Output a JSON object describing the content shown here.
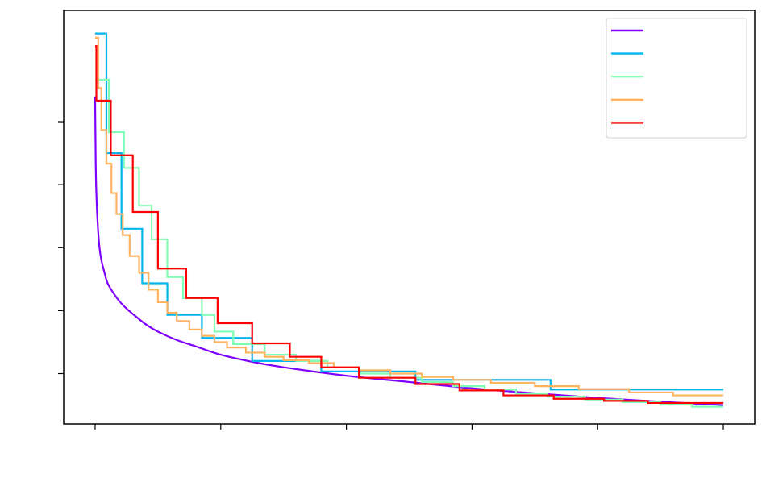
{
  "chart_data": {
    "type": "line",
    "title": "",
    "xlabel": "",
    "ylabel": "",
    "xlim": [
      -5,
      105
    ],
    "ylim": [
      0.08,
      1.065
    ],
    "x_ticks": [
      0,
      20,
      40,
      60,
      80,
      100
    ],
    "y_ticks": [
      0.2,
      0.35,
      0.5,
      0.65,
      0.8
    ],
    "grid": false,
    "legend_placement": "top-right",
    "series": [
      {
        "color": "#8000ff",
        "style": "smooth",
        "points": [
          [
            0,
            0.86
          ],
          [
            0.1,
            0.7
          ],
          [
            0.2,
            0.63
          ],
          [
            0.4,
            0.56
          ],
          [
            0.7,
            0.5
          ],
          [
            1,
            0.47
          ],
          [
            1.5,
            0.44
          ],
          [
            2,
            0.415
          ],
          [
            3,
            0.39
          ],
          [
            4,
            0.37
          ],
          [
            5,
            0.355
          ],
          [
            6,
            0.342
          ],
          [
            8,
            0.318
          ],
          [
            10,
            0.3
          ],
          [
            13,
            0.28
          ],
          [
            16,
            0.265
          ],
          [
            20,
            0.245
          ],
          [
            25,
            0.228
          ],
          [
            30,
            0.215
          ],
          [
            40,
            0.195
          ],
          [
            50,
            0.18
          ],
          [
            60,
            0.165
          ],
          [
            70,
            0.153
          ],
          [
            80,
            0.142
          ],
          [
            90,
            0.133
          ],
          [
            100,
            0.125
          ]
        ]
      },
      {
        "color": "#00b4ec",
        "style": "step",
        "points": [
          [
            0,
            1.01
          ],
          [
            1.8,
            1.01
          ],
          [
            1.8,
            0.725
          ],
          [
            4.2,
            0.725
          ],
          [
            4.2,
            0.545
          ],
          [
            7.5,
            0.545
          ],
          [
            7.5,
            0.415
          ],
          [
            11.5,
            0.415
          ],
          [
            11.5,
            0.34
          ],
          [
            17,
            0.34
          ],
          [
            17,
            0.285
          ],
          [
            25,
            0.285
          ],
          [
            25,
            0.23
          ],
          [
            36,
            0.23
          ],
          [
            36,
            0.205
          ],
          [
            51,
            0.205
          ],
          [
            51,
            0.185
          ],
          [
            72.5,
            0.185
          ],
          [
            72.5,
            0.162
          ],
          [
            100,
            0.162
          ]
        ]
      },
      {
        "color": "#80ffb4",
        "style": "step",
        "points": [
          [
            0,
            0.9
          ],
          [
            2.2,
            0.9
          ],
          [
            2.2,
            0.775
          ],
          [
            4.6,
            0.775
          ],
          [
            4.6,
            0.69
          ],
          [
            7,
            0.69
          ],
          [
            7,
            0.6
          ],
          [
            9,
            0.6
          ],
          [
            9,
            0.52
          ],
          [
            11.5,
            0.52
          ],
          [
            11.5,
            0.43
          ],
          [
            14,
            0.43
          ],
          [
            14,
            0.38
          ],
          [
            17,
            0.38
          ],
          [
            17,
            0.34
          ],
          [
            19,
            0.34
          ],
          [
            19,
            0.3
          ],
          [
            22,
            0.3
          ],
          [
            22,
            0.27
          ],
          [
            27,
            0.27
          ],
          [
            27,
            0.245
          ],
          [
            32,
            0.245
          ],
          [
            32,
            0.23
          ],
          [
            37,
            0.23
          ],
          [
            37,
            0.215
          ],
          [
            42,
            0.215
          ],
          [
            42,
            0.2
          ],
          [
            47,
            0.2
          ],
          [
            47,
            0.19
          ],
          [
            52,
            0.19
          ],
          [
            52,
            0.18
          ],
          [
            57,
            0.18
          ],
          [
            57,
            0.17
          ],
          [
            62,
            0.17
          ],
          [
            62,
            0.162
          ],
          [
            67,
            0.162
          ],
          [
            67,
            0.152
          ],
          [
            72,
            0.152
          ],
          [
            72,
            0.145
          ],
          [
            78,
            0.145
          ],
          [
            78,
            0.138
          ],
          [
            84,
            0.138
          ],
          [
            84,
            0.132
          ],
          [
            90,
            0.132
          ],
          [
            90,
            0.126
          ],
          [
            95,
            0.126
          ],
          [
            95,
            0.121
          ],
          [
            100,
            0.121
          ]
        ]
      },
      {
        "color": "#ffb360",
        "style": "step",
        "points": [
          [
            0,
            1.0
          ],
          [
            0.5,
            1.0
          ],
          [
            0.5,
            0.88
          ],
          [
            1,
            0.88
          ],
          [
            1,
            0.78
          ],
          [
            1.8,
            0.78
          ],
          [
            1.8,
            0.7
          ],
          [
            2.6,
            0.7
          ],
          [
            2.6,
            0.63
          ],
          [
            3.4,
            0.63
          ],
          [
            3.4,
            0.58
          ],
          [
            4.4,
            0.58
          ],
          [
            4.4,
            0.53
          ],
          [
            5.5,
            0.53
          ],
          [
            5.5,
            0.48
          ],
          [
            7,
            0.48
          ],
          [
            7,
            0.44
          ],
          [
            8.5,
            0.44
          ],
          [
            8.5,
            0.4
          ],
          [
            10,
            0.4
          ],
          [
            10,
            0.37
          ],
          [
            11.5,
            0.37
          ],
          [
            11.5,
            0.345
          ],
          [
            13,
            0.345
          ],
          [
            13,
            0.325
          ],
          [
            15,
            0.325
          ],
          [
            15,
            0.305
          ],
          [
            17,
            0.305
          ],
          [
            17,
            0.29
          ],
          [
            19,
            0.29
          ],
          [
            19,
            0.275
          ],
          [
            21,
            0.275
          ],
          [
            21,
            0.262
          ],
          [
            24,
            0.262
          ],
          [
            24,
            0.25
          ],
          [
            27,
            0.25
          ],
          [
            27,
            0.24
          ],
          [
            30,
            0.24
          ],
          [
            30,
            0.232
          ],
          [
            34,
            0.232
          ],
          [
            34,
            0.225
          ],
          [
            38,
            0.225
          ],
          [
            38,
            0.215
          ],
          [
            42,
            0.215
          ],
          [
            42,
            0.208
          ],
          [
            47,
            0.208
          ],
          [
            47,
            0.2
          ],
          [
            52,
            0.2
          ],
          [
            52,
            0.192
          ],
          [
            57,
            0.192
          ],
          [
            57,
            0.185
          ],
          [
            63,
            0.185
          ],
          [
            63,
            0.178
          ],
          [
            70,
            0.178
          ],
          [
            70,
            0.17
          ],
          [
            77,
            0.17
          ],
          [
            77,
            0.163
          ],
          [
            85,
            0.163
          ],
          [
            85,
            0.155
          ],
          [
            92,
            0.155
          ],
          [
            92,
            0.148
          ],
          [
            100,
            0.148
          ]
        ]
      },
      {
        "color": "#ff0000",
        "style": "step",
        "points": [
          [
            0,
            0.98
          ],
          [
            0.2,
            0.98
          ],
          [
            0.2,
            0.85
          ],
          [
            2.5,
            0.85
          ],
          [
            2.5,
            0.72
          ],
          [
            6,
            0.72
          ],
          [
            6,
            0.585
          ],
          [
            10,
            0.585
          ],
          [
            10,
            0.45
          ],
          [
            14.5,
            0.45
          ],
          [
            14.5,
            0.38
          ],
          [
            19.5,
            0.38
          ],
          [
            19.5,
            0.32
          ],
          [
            25,
            0.32
          ],
          [
            25,
            0.272
          ],
          [
            31,
            0.272
          ],
          [
            31,
            0.24
          ],
          [
            36,
            0.24
          ],
          [
            36,
            0.215
          ],
          [
            42,
            0.215
          ],
          [
            42,
            0.19
          ],
          [
            51,
            0.19
          ],
          [
            51,
            0.175
          ],
          [
            58,
            0.175
          ],
          [
            58,
            0.16
          ],
          [
            65,
            0.16
          ],
          [
            65,
            0.148
          ],
          [
            73,
            0.148
          ],
          [
            73,
            0.14
          ],
          [
            81,
            0.14
          ],
          [
            81,
            0.135
          ],
          [
            88,
            0.135
          ],
          [
            88,
            0.13
          ],
          [
            100,
            0.13
          ]
        ]
      }
    ]
  }
}
